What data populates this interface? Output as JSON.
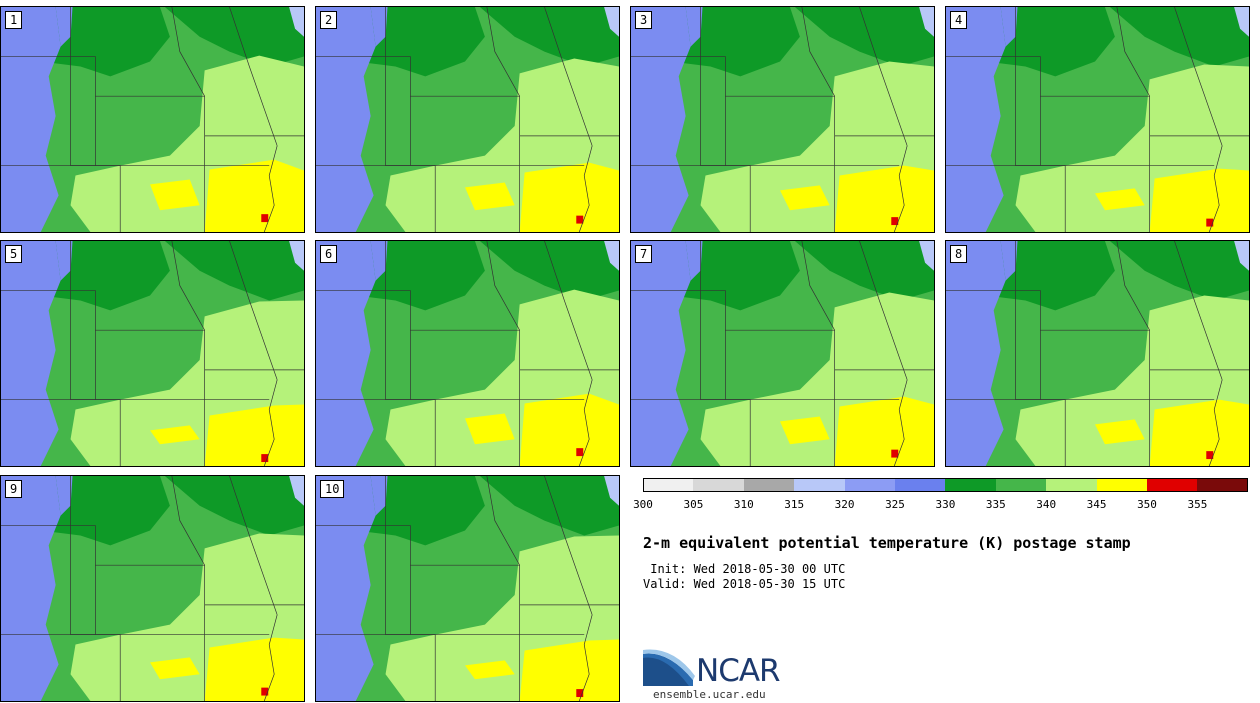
{
  "colors": {
    "purple": "#7b8cf1",
    "dark_green": "#0e9a27",
    "mid_green": "#45b64a",
    "light_green": "#b5f27a",
    "yellow": "#ffff00",
    "red": "#e00000",
    "outline": "#333333"
  },
  "panels": [
    {
      "label": "1"
    },
    {
      "label": "2"
    },
    {
      "label": "3"
    },
    {
      "label": "4"
    },
    {
      "label": "5"
    },
    {
      "label": "6"
    },
    {
      "label": "7"
    },
    {
      "label": "8"
    },
    {
      "label": "9"
    },
    {
      "label": "10"
    }
  ],
  "colorbar": {
    "bins": [
      {
        "color": "#f0f0f0"
      },
      {
        "color": "#d8d8d8"
      },
      {
        "color": "#a8a8a8"
      },
      {
        "color": "#b8c8f8"
      },
      {
        "color": "#8c9cf4"
      },
      {
        "color": "#6a80ee"
      },
      {
        "color": "#0e9a27"
      },
      {
        "color": "#45b64a"
      },
      {
        "color": "#b5f27a"
      },
      {
        "color": "#ffff00"
      },
      {
        "color": "#e00000"
      },
      {
        "color": "#7a0a0a"
      }
    ],
    "ticks": [
      "300",
      "305",
      "310",
      "315",
      "320",
      "325",
      "330",
      "335",
      "340",
      "345",
      "350",
      "355"
    ]
  },
  "title": "2-m equivalent potential temperature (K) postage stamp",
  "init": " Init: Wed 2018-05-30 00 UTC",
  "valid": "Valid: Wed 2018-05-30 15 UTC",
  "logo_text": "NCAR",
  "url": "ensemble.ucar.edu"
}
